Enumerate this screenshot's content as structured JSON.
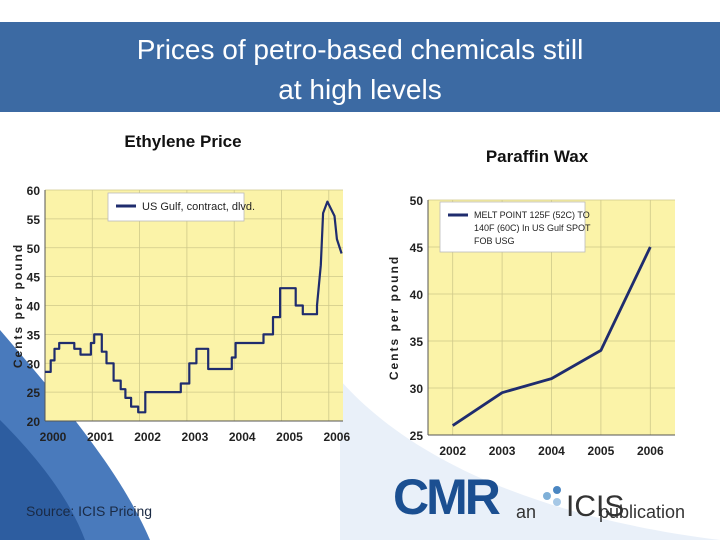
{
  "slide": {
    "title_line1": "Prices of petro-based chemicals still",
    "title_line2": "at  high levels",
    "source": "Source: ICIS Pricing"
  },
  "logo": {
    "cmr": "CMR",
    "an": "an",
    "icis": "ICIS",
    "publication": "publication"
  },
  "colors": {
    "header": "#3c6aa3",
    "plot_bg": "#fbf3a8",
    "line": "#1f2c6e",
    "grid": "#cfc98a"
  },
  "chart_data": [
    {
      "type": "line",
      "title": "Ethylene Price",
      "xlabel": "",
      "ylabel": "Cents per pound",
      "legend": "US Gulf, contract, dlvd.",
      "legend_position": "top-left",
      "xlim": [
        2000,
        2006.3
      ],
      "ylim": [
        20,
        60
      ],
      "x_ticks": [
        2000,
        2001,
        2002,
        2003,
        2004,
        2005,
        2006
      ],
      "x_tick_labels": [
        "2000",
        "2001",
        "2002",
        "2003",
        "2004",
        "2005",
        "2006"
      ],
      "y_ticks": [
        20,
        25,
        30,
        35,
        40,
        45,
        50,
        55,
        60
      ],
      "y_tick_labels": [
        "20",
        "25",
        "30",
        "35",
        "40",
        "45",
        "50",
        "55",
        "60"
      ],
      "grid": true,
      "series": [
        {
          "name": "US Gulf, contract, dlvd.",
          "x": [
            2000.0,
            2000.12,
            2000.12,
            2000.2,
            2000.2,
            2000.3,
            2000.3,
            2000.4,
            2000.4,
            2000.62,
            2000.62,
            2000.75,
            2000.75,
            2000.97,
            2000.97,
            2001.04,
            2001.04,
            2001.2,
            2001.2,
            2001.3,
            2001.3,
            2001.45,
            2001.45,
            2001.6,
            2001.6,
            2001.7,
            2001.7,
            2001.82,
            2001.82,
            2001.97,
            2001.97,
            2002.12,
            2002.12,
            2002.3,
            2002.3,
            2002.87,
            2002.87,
            2003.05,
            2003.05,
            2003.2,
            2003.2,
            2003.45,
            2003.45,
            2003.55,
            2003.55,
            2003.95,
            2003.95,
            2004.03,
            2004.03,
            2004.62,
            2004.62,
            2004.82,
            2004.82,
            2004.97,
            2004.97,
            2005.3,
            2005.3,
            2005.45,
            2005.45,
            2005.75,
            2005.75,
            2005.83,
            2005.88,
            2005.88,
            2005.97,
            2005.97,
            2006.12,
            2006.12,
            2006.17,
            2006.17,
            2006.27
          ],
          "y": [
            28.5,
            28.5,
            30.5,
            30.5,
            32.5,
            32.5,
            33.5,
            33.5,
            33.5,
            33.5,
            32.5,
            32.5,
            31.5,
            31.5,
            33.5,
            33.5,
            35.0,
            35.0,
            32.0,
            32.0,
            30.0,
            30.0,
            27.0,
            27.0,
            25.5,
            25.5,
            24.0,
            24.0,
            22.5,
            22.5,
            21.5,
            21.5,
            25.0,
            25.0,
            25.0,
            25.0,
            26.5,
            26.5,
            30.0,
            30.0,
            32.5,
            32.5,
            29.0,
            29.0,
            29.0,
            29.0,
            31.0,
            31.0,
            33.5,
            33.5,
            35.0,
            35.0,
            38.0,
            38.0,
            43.0,
            43.0,
            40.0,
            40.0,
            38.5,
            38.5,
            40.0,
            47.0,
            56.0,
            56.0,
            58.0,
            58.0,
            55.5,
            55.5,
            51.5,
            51.5,
            49.0
          ]
        }
      ]
    },
    {
      "type": "line",
      "title": "Paraffin Wax",
      "xlabel": "",
      "ylabel": "Cents per pound",
      "legend": [
        "MELT POINT 125F (52C) TO",
        "140F (60C) In US Gulf SPOT",
        "FOB USG"
      ],
      "legend_position": "top-left",
      "xlim": [
        2001.5,
        2006.5
      ],
      "ylim": [
        25,
        50
      ],
      "x_ticks": [
        2002,
        2003,
        2004,
        2005,
        2006
      ],
      "x_tick_labels": [
        "2002",
        "2003",
        "2004",
        "2005",
        "2006"
      ],
      "y_ticks": [
        25,
        30,
        35,
        40,
        45,
        50
      ],
      "y_tick_labels": [
        "25",
        "30",
        "35",
        "40",
        "45",
        "50"
      ],
      "grid": true,
      "series": [
        {
          "name": "Melt point 125F-140F, US Gulf spot FOB USG",
          "x": [
            2002,
            2003,
            2004,
            2005,
            2006
          ],
          "y": [
            26.0,
            29.5,
            31.0,
            34.0,
            45.0
          ]
        }
      ]
    }
  ]
}
